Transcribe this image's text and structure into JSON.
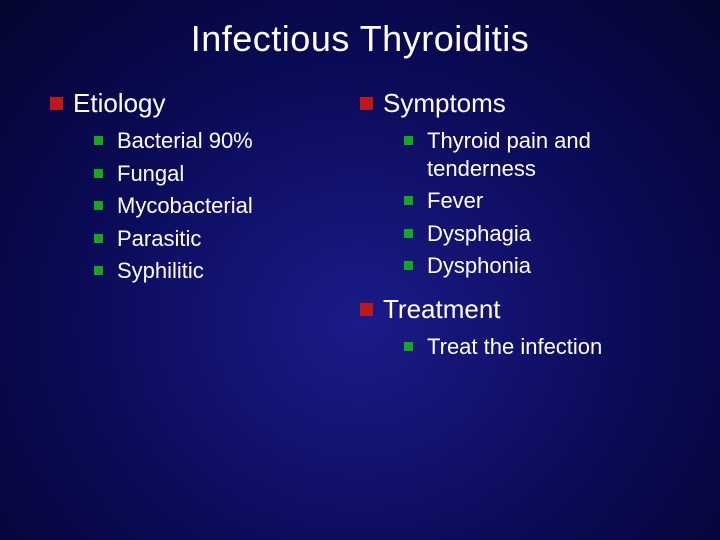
{
  "slide": {
    "title": "Infectious Thyroiditis",
    "title_fontsize": 36,
    "background_gradient": {
      "center_color": "#1b1b8a",
      "mid_color": "#0a0a55",
      "outer_color": "#020218"
    },
    "text_color": "#ffffff",
    "primary_bullet_color": "#c01818",
    "secondary_bullet_color": "#17a81a",
    "columns": {
      "left": {
        "sections": [
          {
            "heading": "Etiology",
            "items": [
              "Bacterial 90%",
              "Fungal",
              "Mycobacterial",
              "Parasitic",
              "Syphilitic"
            ]
          }
        ]
      },
      "right": {
        "sections": [
          {
            "heading": "Symptoms",
            "items": [
              "Thyroid pain and tenderness",
              "Fever",
              "Dysphagia",
              "Dysphonia"
            ]
          },
          {
            "heading": "Treatment",
            "items": [
              "Treat the infection"
            ]
          }
        ]
      }
    }
  }
}
